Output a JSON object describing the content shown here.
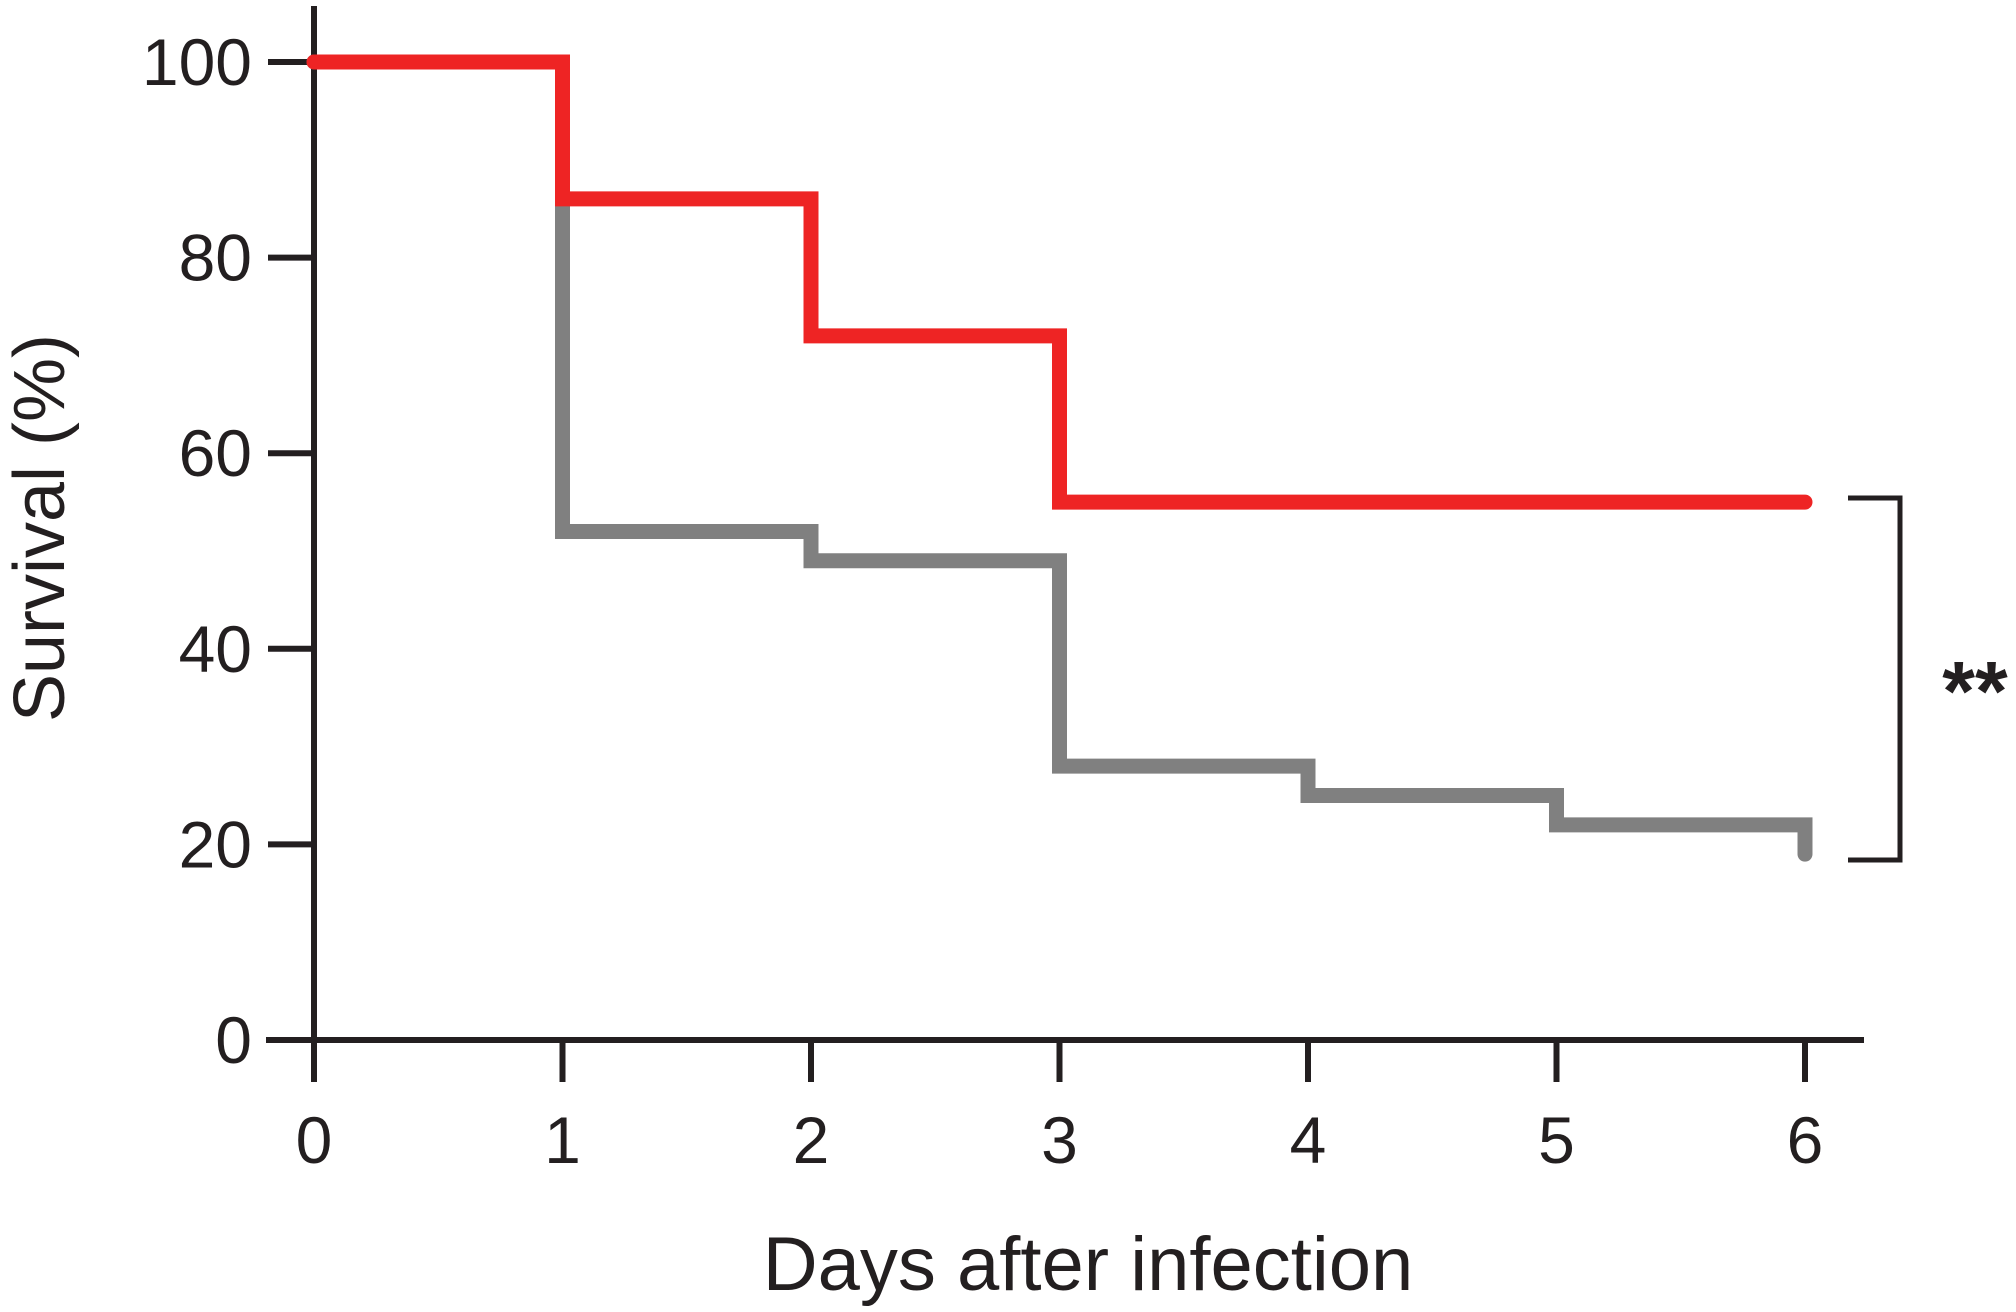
{
  "chart_data": {
    "type": "line",
    "step": true,
    "xlabel": "Days after infection",
    "ylabel": "Survival (%)",
    "xlim": [
      0,
      6
    ],
    "ylim": [
      0,
      100
    ],
    "xticks": [
      "0",
      "1",
      "2",
      "3",
      "4",
      "5",
      "6"
    ],
    "yticks": [
      "0",
      "20",
      "40",
      "60",
      "80",
      "100"
    ],
    "grid": false,
    "legend": "none",
    "series": [
      {
        "color": "#ee2424",
        "x": [
          0,
          1,
          2,
          3,
          6
        ],
        "y": [
          100,
          86,
          72,
          55,
          55
        ]
      },
      {
        "color": "#808080",
        "x": [
          0,
          1,
          2,
          3,
          4,
          5,
          6
        ],
        "y": [
          100,
          52,
          49,
          28,
          25,
          22,
          19
        ]
      }
    ],
    "annotations": [
      {
        "text": "**",
        "type": "significance-bracket"
      }
    ]
  }
}
